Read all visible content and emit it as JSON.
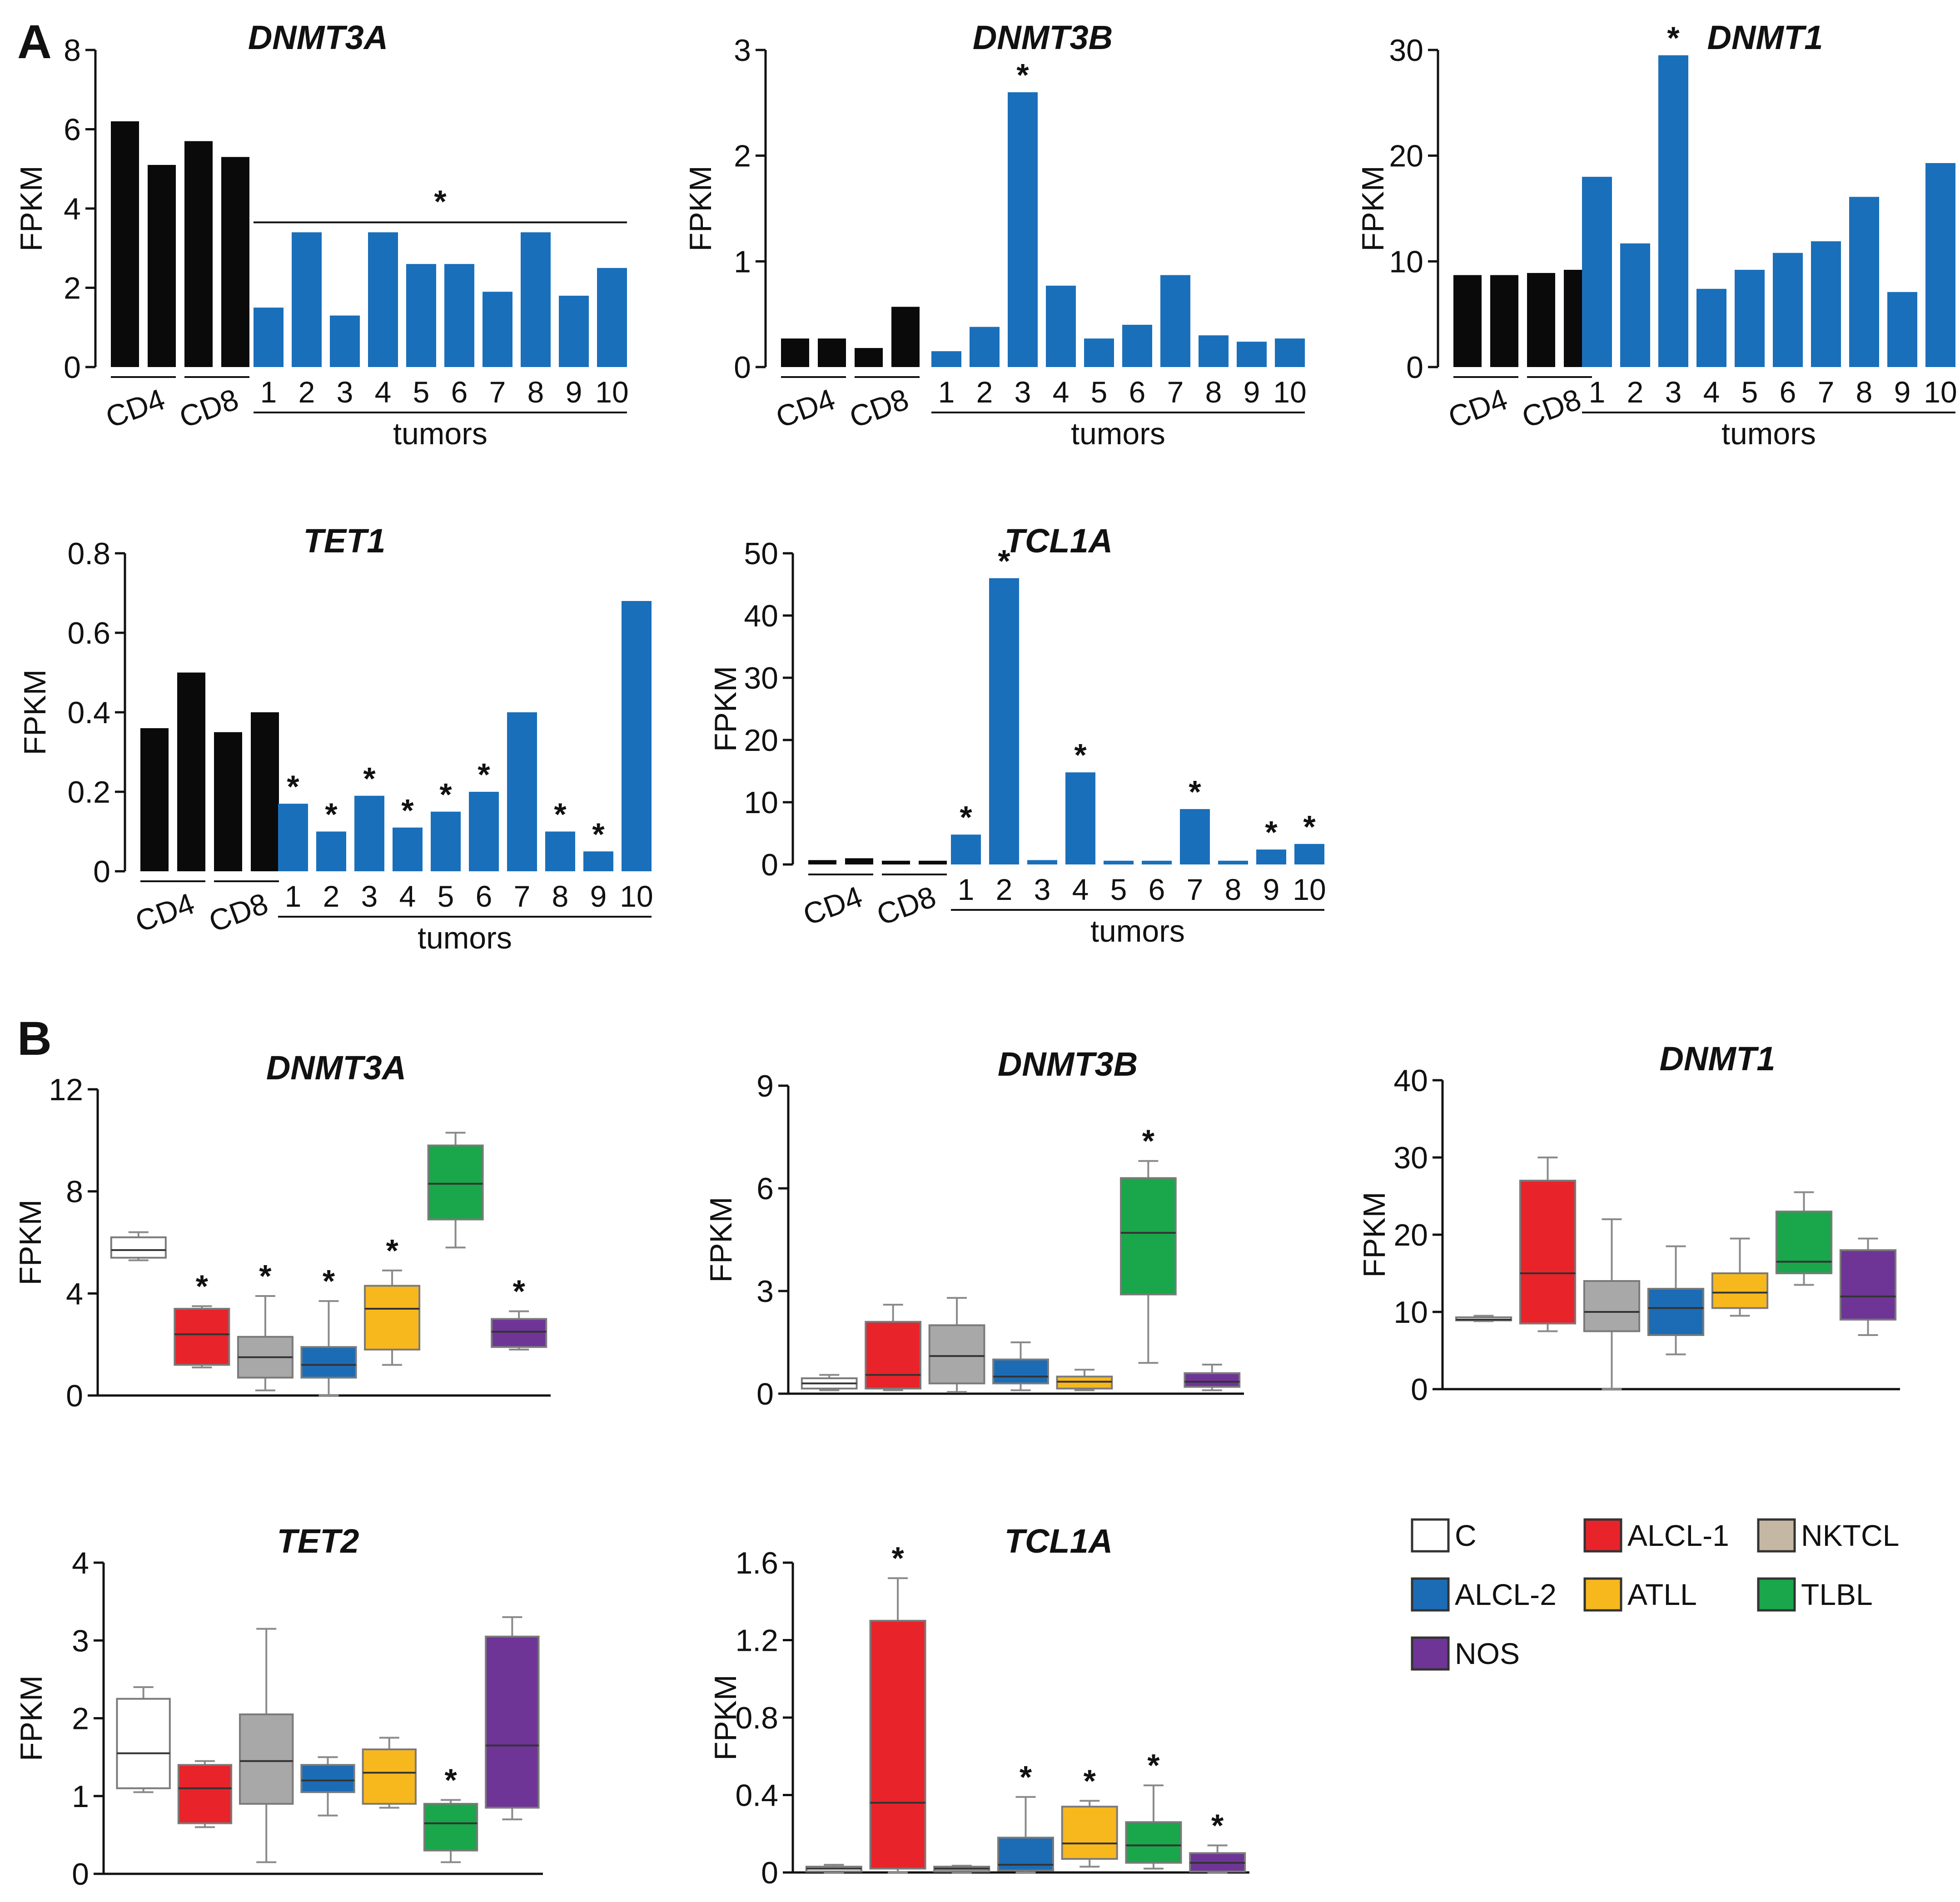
{
  "panel_labels": {
    "A": "A",
    "B": "B"
  },
  "colors": {
    "control": "#0a0a0a",
    "tumor": "#1a6fba",
    "C": "#ffffff",
    "ALCL-1": "#e8232a",
    "NKTCL": "#a8a8a8",
    "ALCL-2": "#1c6cb5",
    "ATLL": "#f7b81e",
    "TLBL": "#1aa64a",
    "NOS": "#6e3596",
    "legend_NKTCL": "#c4b8a4"
  },
  "legend": {
    "items": [
      {
        "name": "C"
      },
      {
        "name": "ALCL-1"
      },
      {
        "name": "NKTCL"
      },
      {
        "name": "ALCL-2"
      },
      {
        "name": "ATLL"
      },
      {
        "name": "TLBL"
      },
      {
        "name": "NOS"
      }
    ]
  },
  "chart_data": [
    {
      "type": "bar",
      "panel": "A",
      "title": "DNMT3A",
      "ylabel": "FPKM",
      "ylim": [
        0,
        8
      ],
      "yticks": [
        "0",
        "2",
        "4",
        "6",
        "8"
      ],
      "control_labels": [
        "CD4",
        "CD8"
      ],
      "control_values": [
        6.2,
        5.1,
        5.7,
        5.3
      ],
      "categories": [
        "1",
        "2",
        "3",
        "4",
        "5",
        "6",
        "7",
        "8",
        "9",
        "10"
      ],
      "values": [
        1.5,
        3.4,
        1.3,
        3.4,
        2.6,
        2.6,
        1.9,
        3.4,
        1.8,
        2.5
      ],
      "group_label": "tumors",
      "significance": {
        "type": "bracket",
        "symbol": "*"
      }
    },
    {
      "type": "bar",
      "panel": "A",
      "title": "DNMT3B",
      "ylabel": "FPKM",
      "ylim": [
        0,
        3
      ],
      "yticks": [
        "0",
        "1",
        "2",
        "3"
      ],
      "control_labels": [
        "CD4",
        "CD8"
      ],
      "control_values": [
        0.27,
        0.27,
        0.18,
        0.57
      ],
      "categories": [
        "1",
        "2",
        "3",
        "4",
        "5",
        "6",
        "7",
        "8",
        "9",
        "10"
      ],
      "values": [
        0.15,
        0.38,
        2.6,
        0.77,
        0.27,
        0.4,
        0.87,
        0.3,
        0.24,
        0.27
      ],
      "group_label": "tumors",
      "stars": [
        3
      ]
    },
    {
      "type": "bar",
      "panel": "A",
      "title": "DNMT1",
      "ylabel": "FPKM",
      "ylim": [
        0,
        30
      ],
      "yticks": [
        "0",
        "10",
        "20",
        "30"
      ],
      "control_labels": [
        "CD4",
        "CD8"
      ],
      "control_values": [
        8.7,
        8.7,
        8.9,
        9.2
      ],
      "categories": [
        "1",
        "2",
        "3",
        "4",
        "5",
        "6",
        "7",
        "8",
        "9",
        "10"
      ],
      "values": [
        18,
        11.7,
        29.5,
        7.4,
        9.2,
        10.8,
        11.9,
        16.1,
        7.1,
        19.3
      ],
      "group_label": "tumors",
      "stars": [
        3
      ]
    },
    {
      "type": "bar",
      "panel": "A",
      "title": "TET1",
      "ylabel": "FPKM",
      "ylim": [
        0,
        0.8
      ],
      "yticks": [
        "0",
        "0.2",
        "0.4",
        "0.6",
        "0.8"
      ],
      "control_labels": [
        "CD4",
        "CD8"
      ],
      "control_values": [
        0.36,
        0.5,
        0.35,
        0.4
      ],
      "categories": [
        "1",
        "2",
        "3",
        "4",
        "5",
        "6",
        "7",
        "8",
        "9",
        "10"
      ],
      "values": [
        0.17,
        0.1,
        0.19,
        0.11,
        0.15,
        0.2,
        0.4,
        0.1,
        0.05,
        0.68
      ],
      "group_label": "tumors",
      "stars": [
        1,
        2,
        3,
        4,
        5,
        6,
        8,
        9
      ]
    },
    {
      "type": "bar",
      "panel": "A",
      "title": "TCL1A",
      "ylabel": "FPKM",
      "ylim": [
        0,
        50
      ],
      "yticks": [
        "0",
        "10",
        "20",
        "30",
        "40",
        "50"
      ],
      "control_labels": [
        "CD4",
        "CD8"
      ],
      "control_values": [
        0.7,
        1.0,
        0.6,
        0.6
      ],
      "categories": [
        "1",
        "2",
        "3",
        "4",
        "5",
        "6",
        "7",
        "8",
        "9",
        "10"
      ],
      "values": [
        4.8,
        46,
        0.7,
        14.8,
        0.6,
        0.6,
        8.9,
        0.6,
        2.4,
        3.3
      ],
      "group_label": "tumors",
      "stars": [
        1,
        2,
        4,
        7,
        9,
        10
      ]
    },
    {
      "type": "box",
      "panel": "B",
      "title": "DNMT3A",
      "ylabel": "FPKM",
      "ylim": [
        0,
        12
      ],
      "yticks": [
        "0",
        "4",
        "8",
        "12"
      ],
      "groups": [
        "C",
        "ALCL-1",
        "NKTCL",
        "ALCL-2",
        "ATLL",
        "TLBL",
        "NOS"
      ],
      "boxes": [
        {
          "min": 5.3,
          "q1": 5.4,
          "median": 5.7,
          "q3": 6.2,
          "max": 6.4
        },
        {
          "min": 1.1,
          "q1": 1.2,
          "median": 2.4,
          "q3": 3.4,
          "max": 3.5
        },
        {
          "min": 0.2,
          "q1": 0.7,
          "median": 1.5,
          "q3": 2.3,
          "max": 3.9
        },
        {
          "min": 0.0,
          "q1": 0.7,
          "median": 1.2,
          "q3": 1.9,
          "max": 3.7
        },
        {
          "min": 1.2,
          "q1": 1.8,
          "median": 3.4,
          "q3": 4.3,
          "max": 4.9
        },
        {
          "min": 5.8,
          "q1": 6.9,
          "median": 8.3,
          "q3": 9.8,
          "max": 10.3
        },
        {
          "min": 1.8,
          "q1": 1.9,
          "median": 2.5,
          "q3": 3.0,
          "max": 3.3
        }
      ],
      "stars": [
        1,
        2,
        3,
        4,
        6
      ]
    },
    {
      "type": "box",
      "panel": "B",
      "title": "DNMT3B",
      "ylabel": "FPKM",
      "ylim": [
        0,
        9
      ],
      "yticks": [
        "0",
        "3",
        "6",
        "9"
      ],
      "groups": [
        "C",
        "ALCL-1",
        "NKTCL",
        "ALCL-2",
        "ATLL",
        "TLBL",
        "NOS"
      ],
      "boxes": [
        {
          "min": 0.1,
          "q1": 0.15,
          "median": 0.3,
          "q3": 0.45,
          "max": 0.55
        },
        {
          "min": 0.1,
          "q1": 0.15,
          "median": 0.55,
          "q3": 2.1,
          "max": 2.6
        },
        {
          "min": 0.05,
          "q1": 0.3,
          "median": 1.1,
          "q3": 2.0,
          "max": 2.8
        },
        {
          "min": 0.1,
          "q1": 0.3,
          "median": 0.5,
          "q3": 1.0,
          "max": 1.5
        },
        {
          "min": 0.1,
          "q1": 0.15,
          "median": 0.35,
          "q3": 0.5,
          "max": 0.7
        },
        {
          "min": 0.9,
          "q1": 2.9,
          "median": 4.7,
          "q3": 6.3,
          "max": 6.8
        },
        {
          "min": 0.1,
          "q1": 0.2,
          "median": 0.35,
          "q3": 0.6,
          "max": 0.85
        }
      ],
      "stars": [
        5
      ]
    },
    {
      "type": "box",
      "panel": "B",
      "title": "DNMT1",
      "ylabel": "FPKM",
      "ylim": [
        0,
        40
      ],
      "yticks": [
        "0",
        "10",
        "20",
        "30",
        "40"
      ],
      "groups": [
        "C",
        "ALCL-1",
        "NKTCL",
        "ALCL-2",
        "ATLL",
        "TLBL",
        "NOS"
      ],
      "boxes": [
        {
          "min": 8.8,
          "q1": 8.9,
          "median": 9.0,
          "q3": 9.3,
          "max": 9.5
        },
        {
          "min": 7.5,
          "q1": 8.5,
          "median": 15.0,
          "q3": 27.0,
          "max": 30.0
        },
        {
          "min": 0.0,
          "q1": 7.5,
          "median": 10.0,
          "q3": 14.0,
          "max": 22.0
        },
        {
          "min": 4.5,
          "q1": 7.0,
          "median": 10.5,
          "q3": 13.0,
          "max": 18.5
        },
        {
          "min": 9.5,
          "q1": 10.5,
          "median": 12.5,
          "q3": 15.0,
          "max": 19.5
        },
        {
          "min": 13.5,
          "q1": 15.0,
          "median": 16.5,
          "q3": 23.0,
          "max": 25.5
        },
        {
          "min": 7.0,
          "q1": 9.0,
          "median": 12.0,
          "q3": 18.0,
          "max": 19.5
        }
      ],
      "stars": []
    },
    {
      "type": "box",
      "panel": "B",
      "title": "TET2",
      "ylabel": "FPKM",
      "ylim": [
        0,
        4
      ],
      "yticks": [
        "0",
        "1",
        "2",
        "3",
        "4"
      ],
      "groups": [
        "C",
        "ALCL-1",
        "NKTCL",
        "ALCL-2",
        "ATLL",
        "TLBL",
        "NOS"
      ],
      "boxes": [
        {
          "min": 1.05,
          "q1": 1.1,
          "median": 1.55,
          "q3": 2.25,
          "max": 2.4
        },
        {
          "min": 0.6,
          "q1": 0.65,
          "median": 1.1,
          "q3": 1.4,
          "max": 1.45
        },
        {
          "min": 0.15,
          "q1": 0.9,
          "median": 1.45,
          "q3": 2.05,
          "max": 3.15
        },
        {
          "min": 0.75,
          "q1": 1.05,
          "median": 1.2,
          "q3": 1.4,
          "max": 1.5
        },
        {
          "min": 0.85,
          "q1": 0.9,
          "median": 1.3,
          "q3": 1.6,
          "max": 1.75
        },
        {
          "min": 0.15,
          "q1": 0.3,
          "median": 0.65,
          "q3": 0.9,
          "max": 0.95
        },
        {
          "min": 0.7,
          "q1": 0.85,
          "median": 1.65,
          "q3": 3.05,
          "max": 3.3
        }
      ],
      "stars": [
        5
      ]
    },
    {
      "type": "box",
      "panel": "B",
      "title": "TCL1A",
      "ylabel": "FPKM",
      "ylim": [
        0,
        1.6
      ],
      "yticks": [
        "0",
        "0.4",
        "0.8",
        "1.2",
        "1.6"
      ],
      "groups": [
        "C",
        "ALCL-1",
        "NKTCL",
        "ALCL-2",
        "ATLL",
        "TLBL",
        "NOS"
      ],
      "boxes": [
        {
          "min": 0.0,
          "q1": 0.005,
          "median": 0.02,
          "q3": 0.03,
          "max": 0.04
        },
        {
          "min": 0.0,
          "q1": 0.02,
          "median": 0.36,
          "q3": 1.3,
          "max": 1.52
        },
        {
          "min": 0.0,
          "q1": 0.005,
          "median": 0.02,
          "q3": 0.03,
          "max": 0.035
        },
        {
          "min": 0.0,
          "q1": 0.01,
          "median": 0.04,
          "q3": 0.18,
          "max": 0.39
        },
        {
          "min": 0.03,
          "q1": 0.07,
          "median": 0.15,
          "q3": 0.34,
          "max": 0.37
        },
        {
          "min": 0.02,
          "q1": 0.05,
          "median": 0.14,
          "q3": 0.26,
          "max": 0.45
        },
        {
          "min": 0.0,
          "q1": 0.005,
          "median": 0.05,
          "q3": 0.1,
          "max": 0.14
        }
      ],
      "stars": [
        1,
        3,
        4,
        5,
        6
      ]
    }
  ]
}
